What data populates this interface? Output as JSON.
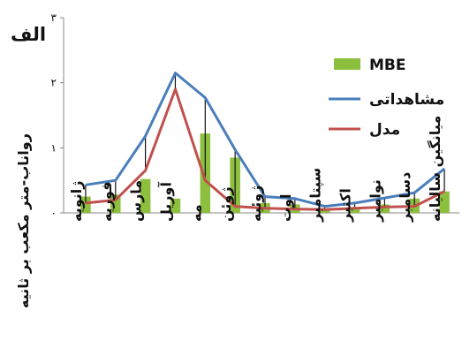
{
  "chart_data": {
    "type": "bar",
    "panel_label": "الف",
    "ylabel": "رواناب-متر مکعب بر ثانیه",
    "ylim": [
      0,
      3
    ],
    "yticks": [
      "۰",
      "۱",
      "۲",
      "۳"
    ],
    "categories": [
      "ژانویه",
      "فوریه",
      "مارس",
      "آوریل",
      "مه",
      "ژوئن",
      "ژوئیه",
      "اوت",
      "سپتامبر",
      "اکتبر",
      "نوامبر",
      "دسامبر",
      "میانگین سالیانه"
    ],
    "series": [
      {
        "name": "MBE",
        "kind": "bar",
        "color": "#8dbf3f",
        "values": [
          0.25,
          0.28,
          0.52,
          0.22,
          1.22,
          0.85,
          0.15,
          0.13,
          0.05,
          0.07,
          0.13,
          0.22,
          0.33
        ]
      },
      {
        "name": "مشاهداتی",
        "kind": "line",
        "color": "#4a7ebb",
        "values": [
          0.43,
          0.5,
          1.18,
          2.15,
          1.77,
          0.97,
          0.25,
          0.22,
          0.1,
          0.15,
          0.23,
          0.31,
          0.68
        ]
      },
      {
        "name": "مدل",
        "kind": "line",
        "color": "#c0504d",
        "values": [
          0.15,
          0.2,
          0.65,
          1.9,
          0.5,
          0.1,
          0.07,
          0.06,
          0.05,
          0.07,
          0.09,
          0.1,
          0.33
        ]
      }
    ],
    "legend_position": "top-right",
    "grid": false
  }
}
